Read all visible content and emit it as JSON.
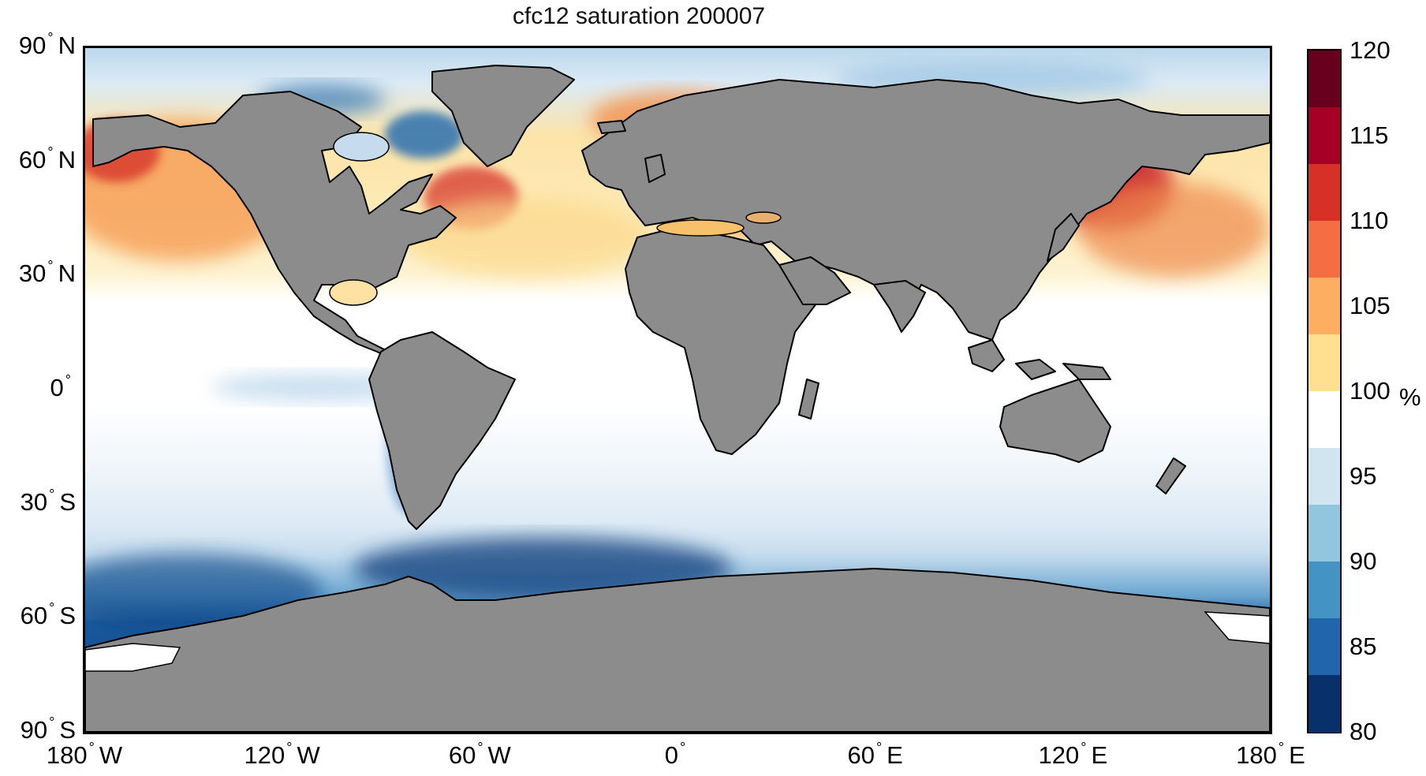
{
  "title": "cfc12 saturation 200007",
  "lat_axis": {
    "ticks": [
      {
        "value": 90,
        "num": "90",
        "hemi": "N"
      },
      {
        "value": 60,
        "num": "60",
        "hemi": "N"
      },
      {
        "value": 30,
        "num": "30",
        "hemi": "N"
      },
      {
        "value": 0,
        "num": "0",
        "hemi": ""
      },
      {
        "value": -30,
        "num": "30",
        "hemi": "S"
      },
      {
        "value": -60,
        "num": "60",
        "hemi": "S"
      },
      {
        "value": -90,
        "num": "90",
        "hemi": "S"
      }
    ]
  },
  "lon_axis": {
    "ticks": [
      {
        "value": -180,
        "num": "180",
        "hemi": "W"
      },
      {
        "value": -120,
        "num": "120",
        "hemi": "W"
      },
      {
        "value": -60,
        "num": "60",
        "hemi": "W"
      },
      {
        "value": 0,
        "num": "0",
        "hemi": ""
      },
      {
        "value": 60,
        "num": "60",
        "hemi": "E"
      },
      {
        "value": 120,
        "num": "120",
        "hemi": "E"
      },
      {
        "value": 180,
        "num": "180",
        "hemi": "E"
      }
    ]
  },
  "colorbar": {
    "min": 80,
    "max": 120,
    "ticks": [
      "120",
      "115",
      "110",
      "105",
      "100",
      "95",
      "90",
      "85",
      "80"
    ],
    "unit": "%",
    "colors": [
      "#08306b",
      "#2166ac",
      "#4393c3",
      "#92c5de",
      "#d1e5f0",
      "#ffffff",
      "#fee090",
      "#fdae61",
      "#f46d43",
      "#d73027",
      "#a50026",
      "#67001f"
    ]
  },
  "map": {
    "land_color": "#8c8c8c",
    "coast_color": "#000000",
    "warm_color": "#f4a259",
    "cold_color": "#08306b"
  }
}
